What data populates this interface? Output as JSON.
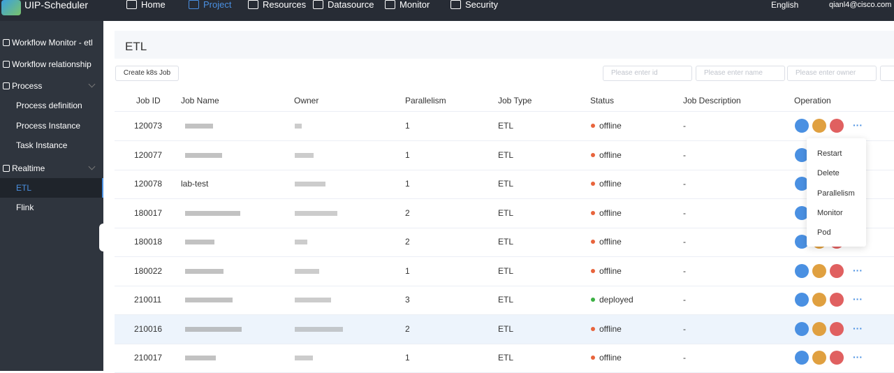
{
  "header": {
    "brand": "UIP-Scheduler",
    "nav": [
      "Home",
      "Project",
      "Resources",
      "Datasource",
      "Monitor",
      "Security"
    ],
    "language": "English",
    "user": "qianl4@cisco.com"
  },
  "sidebar": [
    {
      "label": "Workflow Monitor - etl"
    },
    {
      "label": "Workflow relationship"
    },
    {
      "label": "Process",
      "children": [
        "Process definition",
        "Process Instance",
        "Task Instance"
      ]
    },
    {
      "label": "Realtime",
      "children": [
        "ETL",
        "Flink"
      ]
    }
  ],
  "page": {
    "title": "ETL",
    "create_button": "Create k8s Job",
    "filters": [
      "Please enter id",
      "Please enter name",
      "Please enter owner"
    ]
  },
  "table": {
    "columns": [
      "Job ID",
      "Job Name",
      "Owner",
      "Parallelism",
      "Job Type",
      "Status",
      "Job Description",
      "Operation"
    ],
    "rows": [
      {
        "id": "120073",
        "parallelism": "1",
        "type": "ETL",
        "status": "offline",
        "description": "-"
      },
      {
        "id": "120077",
        "parallelism": "1",
        "type": "ETL",
        "status": "offline",
        "description": "-"
      },
      {
        "id": "120078",
        "name": "lab-test",
        "parallelism": "1",
        "type": "ETL",
        "status": "offline",
        "description": "-"
      },
      {
        "id": "180017",
        "parallelism": "2",
        "type": "ETL",
        "status": "offline",
        "description": "-"
      },
      {
        "id": "180018",
        "parallelism": "2",
        "type": "ETL",
        "status": "offline",
        "description": "-"
      },
      {
        "id": "180022",
        "parallelism": "1",
        "type": "ETL",
        "status": "offline",
        "description": "-"
      },
      {
        "id": "210011",
        "parallelism": "3",
        "type": "ETL",
        "status": "deployed",
        "description": "-"
      },
      {
        "id": "210016",
        "parallelism": "2",
        "type": "ETL",
        "status": "offline",
        "description": "-"
      },
      {
        "id": "210017",
        "parallelism": "1",
        "type": "ETL",
        "status": "offline",
        "description": "-"
      }
    ]
  },
  "menu": [
    "Restart",
    "Delete",
    "Parallelism",
    "Monitor",
    "Pod"
  ]
}
